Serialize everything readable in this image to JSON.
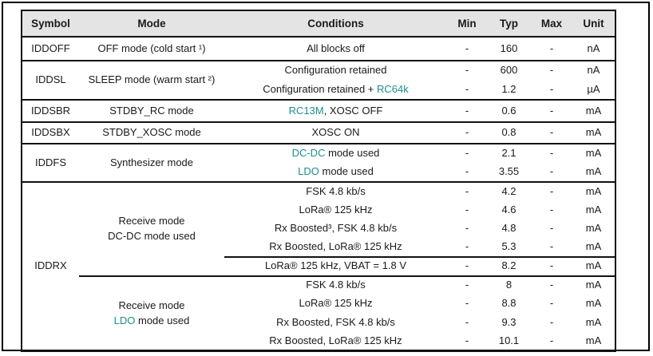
{
  "colors": {
    "accent_teal": "#208d8d",
    "header_background": "#e4e4e4",
    "border": "#111111",
    "text": "#1a1a1a"
  },
  "header": {
    "symbol": "Symbol",
    "mode": "Mode",
    "conditions": "Conditions",
    "min": "Min",
    "typ": "Typ",
    "max": "Max",
    "unit": "Unit"
  },
  "rows": [
    {
      "symbol": "IDDOFF",
      "mode": "OFF mode (cold start ¹)",
      "cond": {
        "pre": "All blocks off",
        "accent": "",
        "post": ""
      },
      "min": "-",
      "typ": "160",
      "max": "-",
      "unit": "nA"
    },
    {
      "symbol": "IDDSL",
      "mode": "SLEEP mode (warm start ²)",
      "cond": {
        "pre": "Configuration retained",
        "accent": "",
        "post": ""
      },
      "min": "-",
      "typ": "600",
      "max": "-",
      "unit": "nA"
    },
    {
      "cond": {
        "pre": "Configuration retained + ",
        "accent": "RC64k",
        "post": ""
      },
      "min": "-",
      "typ": "1.2",
      "max": "-",
      "unit": "µA"
    },
    {
      "symbol": "IDDSBR",
      "mode": "STDBY_RC mode",
      "cond": {
        "pre": "",
        "accent": "RC13M",
        "post": ", XOSC OFF"
      },
      "min": "-",
      "typ": "0.6",
      "max": "-",
      "unit": "mA"
    },
    {
      "symbol": "IDDSBX",
      "mode": "STDBY_XOSC mode",
      "cond": {
        "pre": "XOSC ON",
        "accent": "",
        "post": ""
      },
      "min": "-",
      "typ": "0.8",
      "max": "-",
      "unit": "mA"
    },
    {
      "symbol": "IDDFS",
      "mode": "Synthesizer mode",
      "cond": {
        "pre": "",
        "accent": "DC-DC",
        "post": " mode used"
      },
      "min": "-",
      "typ": "2.1",
      "max": "-",
      "unit": "mA"
    },
    {
      "cond": {
        "pre": "",
        "accent": "LDO",
        "post": " mode used"
      },
      "min": "-",
      "typ": "3.55",
      "max": "-",
      "unit": "mA"
    },
    {
      "symbol": "IDDRX",
      "mode": {
        "line1": "Receive mode",
        "line2_accent": "",
        "line2_post": "DC-DC mode used"
      },
      "cond": {
        "pre": "FSK 4.8 kb/s",
        "accent": "",
        "post": ""
      },
      "min": "-",
      "typ": "4.2",
      "max": "-",
      "unit": "mA"
    },
    {
      "cond": {
        "pre": "LoRa® 125 kHz",
        "accent": "",
        "post": ""
      },
      "min": "-",
      "typ": "4.6",
      "max": "-",
      "unit": "mA"
    },
    {
      "cond": {
        "pre": "Rx Boosted³, FSK 4.8 kb/s",
        "accent": "",
        "post": ""
      },
      "min": "-",
      "typ": "4.8",
      "max": "-",
      "unit": "mA"
    },
    {
      "cond": {
        "pre": "Rx Boosted, LoRa® 125 kHz",
        "accent": "",
        "post": ""
      },
      "min": "-",
      "typ": "5.3",
      "max": "-",
      "unit": "mA"
    },
    {
      "cond": {
        "pre": "LoRa® 125 kHz, VBAT = 1.8 V",
        "accent": "",
        "post": ""
      },
      "min": "-",
      "typ": "8.2",
      "max": "-",
      "unit": "mA"
    },
    {
      "mode": {
        "line1": "Receive mode",
        "line2_accent": "LDO",
        "line2_post": " mode used"
      },
      "cond": {
        "pre": "FSK 4.8 kb/s",
        "accent": "",
        "post": ""
      },
      "min": "-",
      "typ": "8",
      "max": "-",
      "unit": "mA"
    },
    {
      "cond": {
        "pre": "LoRa® 125 kHz",
        "accent": "",
        "post": ""
      },
      "min": "-",
      "typ": "8.8",
      "max": "-",
      "unit": "mA"
    },
    {
      "cond": {
        "pre": "Rx Boosted, FSK 4.8 kb/s",
        "accent": "",
        "post": ""
      },
      "min": "-",
      "typ": "9.3",
      "max": "-",
      "unit": "mA"
    },
    {
      "cond": {
        "pre": "Rx Boosted, LoRa® 125 kHz",
        "accent": "",
        "post": ""
      },
      "min": "-",
      "typ": "10.1",
      "max": "-",
      "unit": "mA"
    }
  ]
}
